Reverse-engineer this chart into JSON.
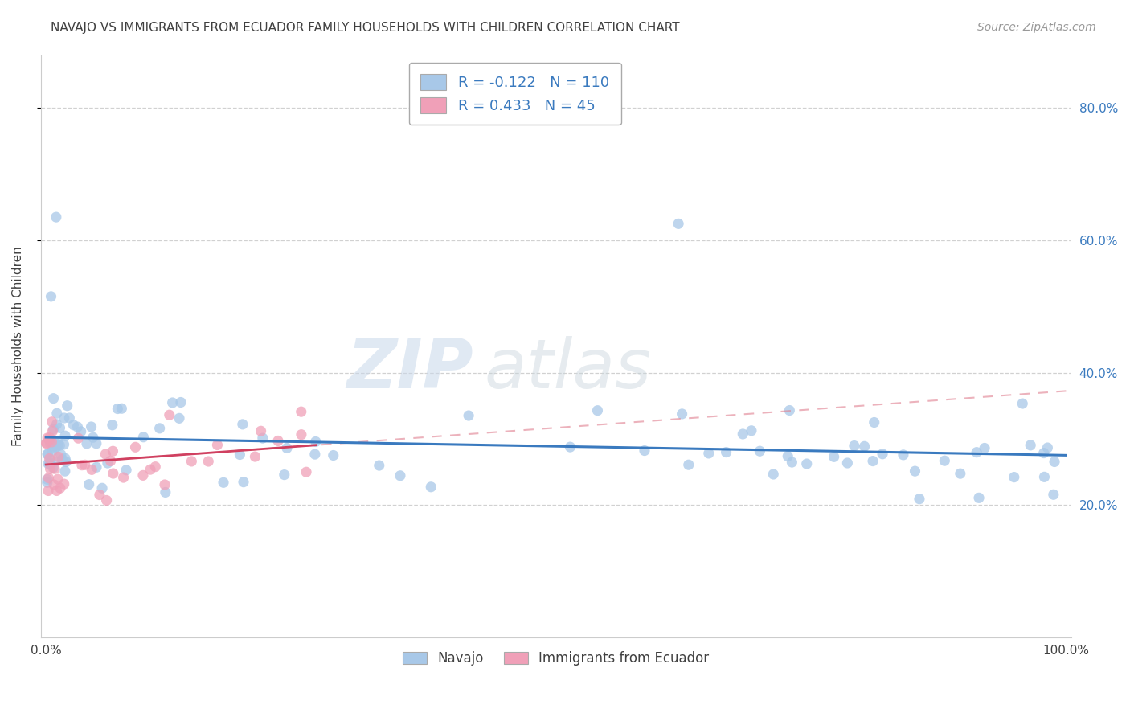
{
  "title": "NAVAJO VS IMMIGRANTS FROM ECUADOR FAMILY HOUSEHOLDS WITH CHILDREN CORRELATION CHART",
  "source": "Source: ZipAtlas.com",
  "ylabel": "Family Households with Children",
  "legend_navajo": "Navajo",
  "legend_ecuador": "Immigrants from Ecuador",
  "navajo_R": "-0.122",
  "navajo_N": "110",
  "ecuador_R": "0.433",
  "ecuador_N": "45",
  "navajo_color": "#a8c8e8",
  "ecuador_color": "#f0a0b8",
  "navajo_line_color": "#3a7abf",
  "ecuador_line_color": "#d04060",
  "ecuador_dash_color": "#e08090",
  "watermark_zip": "ZIP",
  "watermark_atlas": "atlas",
  "background_color": "#ffffff",
  "grid_color": "#cccccc",
  "title_color": "#404040",
  "legend_text_color": "#3a7abf",
  "axis_label_color": "#3a7abf"
}
